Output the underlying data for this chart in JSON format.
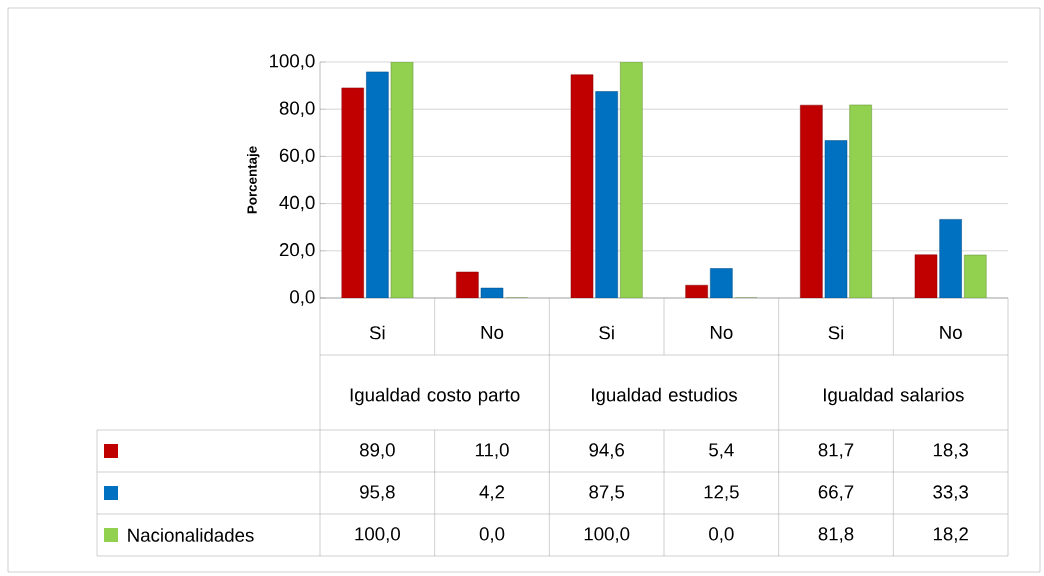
{
  "chart_data": {
    "type": "bar",
    "ylabel": "Porcentaje",
    "categories": [
      "Si",
      "No",
      "Si",
      "No",
      "Si",
      "No"
    ],
    "annotations": [
      "Igualdad costo parto",
      "Igualdad estudios",
      "Igualdad salarios"
    ],
    "series": [
      {
        "color": "#c00000",
        "values": [
          89.0,
          11.0,
          94.6,
          5.4,
          81.7,
          18.3
        ],
        "value_labels": [
          "89,0",
          "11,0",
          "94,6",
          "5,4",
          "81,7",
          "18,3"
        ]
      },
      {
        "color": "#0070c0",
        "values": [
          95.8,
          4.2,
          87.5,
          12.5,
          66.7,
          33.3
        ],
        "value_labels": [
          "95,8",
          "4,2",
          "87,5",
          "12,5",
          "66,7",
          "33,3"
        ]
      },
      {
        "name": "Nacionalidades",
        "color": "#92d050",
        "values": [
          100.0,
          0.0,
          100.0,
          0.0,
          81.8,
          18.2
        ],
        "value_labels": [
          "100,0",
          "0,0",
          "100,0",
          "0,0",
          "81,8",
          "18,2"
        ]
      }
    ],
    "ylim": [
      0,
      100
    ],
    "yticks": [
      {
        "value": 0,
        "label": "0,0"
      },
      {
        "value": 20,
        "label": "20,0"
      },
      {
        "value": 40,
        "label": "40,0"
      },
      {
        "value": 60,
        "label": "60,0"
      },
      {
        "value": 80,
        "label": "80,0"
      },
      {
        "value": 100,
        "label": "100,0"
      }
    ],
    "grid": "y",
    "legend": "bottom"
  }
}
